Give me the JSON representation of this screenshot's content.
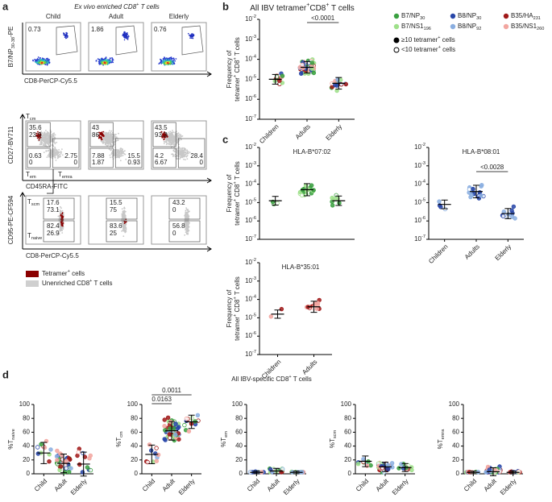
{
  "a": {
    "letter": "a",
    "title": [
      "Ex vivo enriched CD8",
      {
        "t": "+",
        "s": "sup"
      },
      " T cells"
    ],
    "groups": [
      "Child",
      "Adult",
      "Elderly"
    ],
    "row1": {
      "ylabel": [
        "B7/NP",
        {
          "t": "30-38",
          "s": "sub"
        },
        "-PE"
      ],
      "xlabel": "CD8-PerCP-Cy5.5",
      "values": [
        "0.73",
        "1.86",
        "0.76"
      ]
    },
    "row2": {
      "ylabel": "CD27-BV711",
      "xlabel": "CD45RA-FITC",
      "gates": [
        [
          "T",
          {
            "t": "cm",
            "s": "sub"
          }
        ],
        [
          "T",
          {
            "t": "em",
            "s": "sub"
          }
        ],
        [
          "T",
          {
            "t": "emra",
            "s": "sub"
          }
        ]
      ],
      "values": [
        [
          [
            "35.6",
            "23.9"
          ],
          [
            "0.63",
            "0"
          ],
          [
            "2.75",
            "0"
          ]
        ],
        [
          [
            "43",
            "86"
          ],
          [
            "7.88",
            "1.87"
          ],
          [
            "15.5",
            "0.93"
          ]
        ],
        [
          [
            "43.5",
            "93.3"
          ],
          [
            "4.2",
            "6.67"
          ],
          [
            "28.4",
            "0"
          ]
        ]
      ]
    },
    "row3": {
      "ylabel": "CD95-PE-CF594",
      "xlabel": "CD8-PerCP-Cy5.5",
      "gates": [
        [
          "T",
          {
            "t": "scm",
            "s": "sub"
          }
        ],
        [
          "T",
          {
            "t": "naive",
            "s": "sub"
          }
        ]
      ],
      "values": [
        [
          [
            "17.6",
            "73.1"
          ],
          [
            "82.4",
            "26.9"
          ]
        ],
        [
          [
            "15.5",
            "75"
          ],
          [
            "83.6",
            "25"
          ]
        ],
        [
          [
            "43.2",
            "0"
          ],
          [
            "56.8",
            "0"
          ]
        ]
      ]
    },
    "legend": [
      {
        "label": [
          "Tetramer",
          {
            "t": "+",
            "s": "sup"
          },
          " cells"
        ],
        "color": "#8b0000"
      },
      {
        "label": [
          "Unenriched CD8",
          {
            "t": "+",
            "s": "sup"
          },
          " T cells"
        ],
        "color": "#cfcfcf"
      }
    ]
  },
  "b": {
    "letter": "b",
    "title": [
      "All IBV tetramer",
      {
        "t": "+",
        "s": "sup"
      },
      "CD8",
      {
        "t": "+",
        "s": "sup"
      },
      " T cells"
    ],
    "ylabel": [
      [
        "Frequency of"
      ],
      [
        "tetramer",
        {
          "t": "+",
          "s": "sup"
        },
        " CD8",
        {
          "t": "+",
          "s": "sup"
        },
        " T cells"
      ]
    ],
    "tick_base": "10",
    "yticks": [
      -2,
      -3,
      -4,
      -5,
      -6,
      -7
    ],
    "categories": [
      "Children",
      "Adults",
      "Elderly"
    ],
    "p_values": [
      "<0.0001"
    ],
    "legend": [
      {
        "label": [
          "B7/NP",
          {
            "t": "30",
            "s": "sub"
          }
        ],
        "color": "#3aa040"
      },
      {
        "label": [
          "B8/NP",
          {
            "t": "30",
            "s": "sub"
          }
        ],
        "color": "#2846a8"
      },
      {
        "label": [
          "B35/HA",
          {
            "t": "231",
            "s": "sub"
          }
        ],
        "color": "#a01818"
      },
      {
        "label": [
          "B7/NS1",
          {
            "t": "196",
            "s": "sub"
          }
        ],
        "color": "#9ee08a"
      },
      {
        "label": [
          "B8/NP",
          {
            "t": "92",
            "s": "sub"
          }
        ],
        "color": "#8aaee0"
      },
      {
        "label": [
          "B35/NS1",
          {
            "t": "260",
            "s": "sub"
          }
        ],
        "color": "#f2a6a0"
      }
    ],
    "count_legend": [
      {
        "label": [
          "≥10 tetramer",
          {
            "t": "+",
            "s": "sup"
          },
          " cells"
        ],
        "filled": true
      },
      {
        "label": [
          "<10 tetramer",
          {
            "t": "+",
            "s": "sup"
          },
          " cells"
        ],
        "filled": false
      }
    ]
  },
  "c": {
    "letter": "c",
    "tick_base": "10",
    "yticks": [
      -2,
      -3,
      -4,
      -5,
      -6,
      -7
    ],
    "ylabel": [
      [
        "Frequency of"
      ],
      [
        "tetramer",
        {
          "t": "+",
          "s": "sup"
        },
        " CD8",
        {
          "t": "+",
          "s": "sup"
        },
        " T cells"
      ]
    ],
    "plots": [
      {
        "title": "HLA-B*07:02",
        "color": "#3a8a2e"
      },
      {
        "title": "HLA-B*08:01",
        "color": "#2030c0",
        "categories": [
          "Children",
          "Adults",
          "Elderly"
        ],
        "p_values": [
          "<0.0028"
        ]
      },
      {
        "title": "HLA-B*35:01",
        "color": "#c01818",
        "categories": [
          "Children",
          "Adults"
        ]
      }
    ]
  },
  "d": {
    "letter": "d",
    "title": [
      "All IBV-specific CD8",
      {
        "t": "+",
        "s": "sup"
      },
      " T cells"
    ],
    "yticks": [
      0,
      20,
      40,
      60,
      80,
      100
    ],
    "categories": [
      "Child",
      "Adult",
      "Elderly"
    ],
    "plots": [
      {
        "ylabel": [
          "%T",
          {
            "t": "naive",
            "s": "sub"
          }
        ]
      },
      {
        "ylabel": [
          "%T",
          {
            "t": "cm",
            "s": "sub"
          }
        ],
        "p_values": [
          "0.0011",
          "0.0163"
        ]
      },
      {
        "ylabel": [
          "%T",
          {
            "t": "em",
            "s": "sub"
          }
        ]
      },
      {
        "ylabel": [
          "%T",
          {
            "t": "scm",
            "s": "sub"
          }
        ]
      },
      {
        "ylabel": [
          "%T",
          {
            "t": "emra",
            "s": "sub"
          }
        ]
      }
    ]
  }
}
